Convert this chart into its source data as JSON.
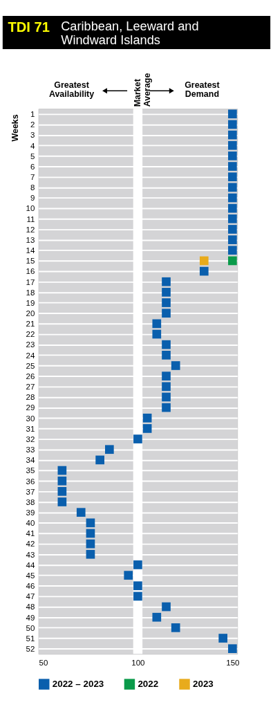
{
  "chart_data": {
    "type": "scatter",
    "title": "TDI 71",
    "subtitle": "Caribbean, Leeward and Windward Islands",
    "ylabel": "Weeks",
    "annotations": [
      "Greatest Availability",
      "Greatest Demand"
    ],
    "categories": [
      "1",
      "2",
      "3",
      "4",
      "5",
      "6",
      "7",
      "8",
      "9",
      "10",
      "11",
      "12",
      "13",
      "14",
      "15",
      "16",
      "17",
      "18",
      "19",
      "20",
      "21",
      "22",
      "23",
      "24",
      "25",
      "26",
      "27",
      "28",
      "29",
      "30",
      "31",
      "32",
      "33",
      "34",
      "35",
      "36",
      "37",
      "38",
      "39",
      "40",
      "41",
      "42",
      "43",
      "44",
      "45",
      "46",
      "47",
      "48",
      "49",
      "50",
      "51",
      "52"
    ],
    "series": [
      {
        "name": "2022 – 2023",
        "color": "#0a5fad",
        "values": [
          150,
          150,
          150,
          150,
          150,
          150,
          150,
          150,
          150,
          150,
          150,
          150,
          150,
          150,
          null,
          135,
          115,
          115,
          115,
          115,
          110,
          110,
          115,
          115,
          120,
          115,
          115,
          115,
          115,
          105,
          105,
          100,
          85,
          80,
          60,
          60,
          60,
          60,
          70,
          75,
          75,
          75,
          75,
          100,
          95,
          100,
          100,
          115,
          110,
          120,
          145,
          150
        ]
      },
      {
        "name": "2022",
        "color": "#0a9a4a",
        "values": [
          null,
          null,
          null,
          null,
          null,
          null,
          null,
          null,
          null,
          null,
          null,
          null,
          null,
          null,
          150,
          null,
          null,
          null,
          null,
          null,
          null,
          null,
          null,
          null,
          null,
          null,
          null,
          null,
          null,
          null,
          null,
          null,
          null,
          null,
          null,
          null,
          null,
          null,
          null,
          null,
          null,
          null,
          null,
          null,
          null,
          null,
          null,
          null,
          null,
          null,
          null,
          null
        ]
      },
      {
        "name": "2023",
        "color": "#e8ab1c",
        "values": [
          null,
          null,
          null,
          null,
          null,
          null,
          null,
          null,
          null,
          null,
          null,
          null,
          null,
          null,
          135,
          null,
          null,
          null,
          null,
          null,
          null,
          null,
          null,
          null,
          null,
          null,
          null,
          null,
          null,
          null,
          null,
          null,
          null,
          null,
          null,
          null,
          null,
          null,
          null,
          null,
          null,
          null,
          null,
          null,
          null,
          null,
          null,
          null,
          null,
          null,
          null,
          null
        ]
      }
    ],
    "xlim": [
      47.5,
      152.5
    ],
    "xticks": [
      50,
      100,
      150
    ],
    "ref_lines": [
      {
        "axis": "x",
        "value": 100,
        "label": "Market Average",
        "color": "#ffffff"
      }
    ],
    "grid": "y",
    "marker": "square",
    "legend": "bottom",
    "orientation": "horizontal"
  }
}
